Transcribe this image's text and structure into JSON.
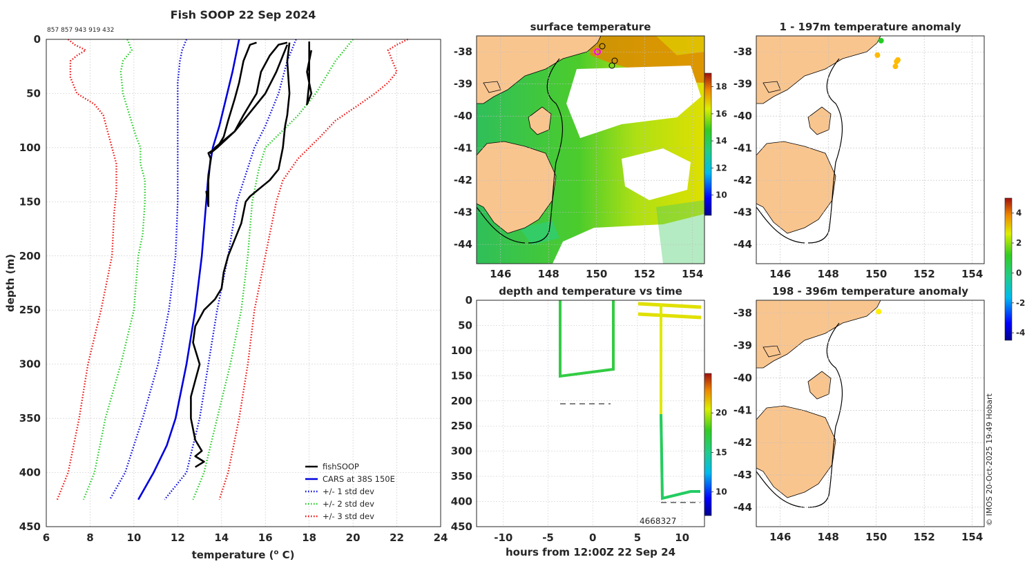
{
  "chart_data": [
    {
      "id": "profile",
      "type": "line",
      "title": "Fish SOOP 22 Sep 2024",
      "header_ids": "857 857 943 919 432",
      "xlabel": "temperature (",
      "xlabel_sup": "o",
      "xlabel_end": " C)",
      "ylabel": "depth (m)",
      "xlim": [
        6,
        24
      ],
      "ylim": [
        0,
        450
      ],
      "xticks": [
        "6",
        "8",
        "10",
        "12",
        "14",
        "16",
        "18",
        "20",
        "22",
        "24"
      ],
      "yticks": [
        "0",
        "50",
        "100",
        "150",
        "200",
        "250",
        "300",
        "350",
        "400",
        "450"
      ],
      "colors": {
        "black": "#000000",
        "blue": "#0000dd",
        "green": "#22cc22",
        "red": "#ee1111"
      },
      "legend": [
        {
          "label": "fishSOOP",
          "color": "#000000",
          "style": "solid"
        },
        {
          "label": "CARS at 38S 150E",
          "color": "#0000dd",
          "style": "solid"
        },
        {
          "label": "+/- 1 std dev",
          "color": "#0000dd",
          "style": "dotted"
        },
        {
          "label": "+/- 2 std dev",
          "color": "#22cc22",
          "style": "dotted"
        },
        {
          "label": "+/- 3 std dev",
          "color": "#ee1111",
          "style": "dotted"
        }
      ],
      "series": [
        {
          "name": "CARS mean",
          "color": "#0000dd",
          "style": "solid",
          "points": [
            [
              14.8,
              0
            ],
            [
              14.7,
              10
            ],
            [
              14.5,
              30
            ],
            [
              14.2,
              55
            ],
            [
              13.9,
              80
            ],
            [
              13.6,
              100
            ],
            [
              13.4,
              125
            ],
            [
              13.3,
              150
            ],
            [
              13.1,
              200
            ],
            [
              12.8,
              250
            ],
            [
              12.4,
              300
            ],
            [
              11.9,
              350
            ],
            [
              11.5,
              375
            ],
            [
              10.9,
              400
            ],
            [
              10.2,
              425
            ]
          ]
        },
        {
          "name": "-1 std",
          "color": "#0000dd",
          "style": "dotted",
          "points": [
            [
              12.4,
              0
            ],
            [
              12.2,
              10
            ],
            [
              12.1,
              20
            ],
            [
              12.0,
              40
            ],
            [
              12.0,
              100
            ],
            [
              12.0,
              150
            ],
            [
              11.9,
              200
            ],
            [
              11.6,
              250
            ],
            [
              11.1,
              300
            ],
            [
              10.4,
              350
            ],
            [
              9.6,
              400
            ],
            [
              8.9,
              425
            ]
          ]
        },
        {
          "name": "+1 std",
          "color": "#0000dd",
          "style": "dotted",
          "points": [
            [
              17.4,
              0
            ],
            [
              17.2,
              10
            ],
            [
              17.0,
              20
            ],
            [
              16.6,
              50
            ],
            [
              16.0,
              80
            ],
            [
              15.5,
              100
            ],
            [
              15.1,
              125
            ],
            [
              14.7,
              150
            ],
            [
              14.3,
              200
            ],
            [
              13.8,
              250
            ],
            [
              13.4,
              300
            ],
            [
              13.0,
              350
            ],
            [
              12.4,
              400
            ],
            [
              11.4,
              425
            ]
          ]
        },
        {
          "name": "-2 std",
          "color": "#22cc22",
          "style": "dotted",
          "points": [
            [
              9.7,
              0
            ],
            [
              9.9,
              10
            ],
            [
              9.5,
              20
            ],
            [
              9.4,
              30
            ],
            [
              9.5,
              50
            ],
            [
              9.8,
              70
            ],
            [
              10.1,
              90
            ],
            [
              10.3,
              100
            ],
            [
              10.3,
              115
            ],
            [
              10.5,
              130
            ],
            [
              10.5,
              150
            ],
            [
              10.4,
              180
            ],
            [
              10.2,
              200
            ],
            [
              10.0,
              250
            ],
            [
              9.4,
              300
            ],
            [
              8.7,
              350
            ],
            [
              8.2,
              400
            ],
            [
              7.7,
              425
            ]
          ]
        },
        {
          "name": "+2 std",
          "color": "#22cc22",
          "style": "dotted",
          "points": [
            [
              20.0,
              0
            ],
            [
              19.6,
              10
            ],
            [
              19.2,
              20
            ],
            [
              18.9,
              30
            ],
            [
              18.3,
              50
            ],
            [
              17.5,
              70
            ],
            [
              16.5,
              90
            ],
            [
              16.0,
              100
            ],
            [
              15.7,
              120
            ],
            [
              15.4,
              150
            ],
            [
              15.2,
              200
            ],
            [
              14.9,
              250
            ],
            [
              14.4,
              300
            ],
            [
              13.8,
              350
            ],
            [
              13.2,
              400
            ],
            [
              12.7,
              425
            ]
          ]
        },
        {
          "name": "-3 std",
          "color": "#ee1111",
          "style": "dotted",
          "points": [
            [
              7.0,
              0
            ],
            [
              7.3,
              5
            ],
            [
              7.8,
              10
            ],
            [
              7.4,
              15
            ],
            [
              7.1,
              20
            ],
            [
              7.1,
              35
            ],
            [
              7.4,
              50
            ],
            [
              8.2,
              60
            ],
            [
              8.6,
              70
            ],
            [
              8.8,
              85
            ],
            [
              9.0,
              100
            ],
            [
              9.2,
              115
            ],
            [
              9.2,
              140
            ],
            [
              9.1,
              160
            ],
            [
              9.0,
              200
            ],
            [
              8.5,
              250
            ],
            [
              7.9,
              300
            ],
            [
              7.5,
              350
            ],
            [
              7.0,
              400
            ],
            [
              6.5,
              425
            ]
          ]
        },
        {
          "name": "+3 std",
          "color": "#ee1111",
          "style": "dotted",
          "points": [
            [
              22.5,
              0
            ],
            [
              22.0,
              5
            ],
            [
              21.6,
              10
            ],
            [
              21.8,
              20
            ],
            [
              22.0,
              30
            ],
            [
              21.6,
              40
            ],
            [
              21.0,
              50
            ],
            [
              20.3,
              60
            ],
            [
              19.2,
              75
            ],
            [
              18.5,
              90
            ],
            [
              17.5,
              110
            ],
            [
              16.8,
              130
            ],
            [
              16.5,
              150
            ],
            [
              16.0,
              200
            ],
            [
              15.5,
              250
            ],
            [
              15.2,
              300
            ],
            [
              14.8,
              350
            ],
            [
              14.3,
              400
            ],
            [
              13.9,
              425
            ]
          ]
        },
        {
          "name": "fishSOOP cast 1",
          "color": "#000000",
          "style": "solid",
          "points": [
            [
              15.6,
              3
            ],
            [
              15.3,
              5
            ],
            [
              15.2,
              10
            ],
            [
              15.0,
              20
            ],
            [
              14.8,
              40
            ],
            [
              14.6,
              55
            ],
            [
              14.3,
              75
            ],
            [
              14.1,
              90
            ],
            [
              13.8,
              100
            ],
            [
              13.4,
              105
            ],
            [
              13.5,
              110
            ],
            [
              13.4,
              130
            ],
            [
              13.4,
              154
            ],
            [
              13.3,
              140
            ]
          ]
        },
        {
          "name": "fishSOOP cast 2",
          "color": "#000000",
          "style": "solid",
          "points": [
            [
              17.0,
              3
            ],
            [
              16.6,
              5
            ],
            [
              16.2,
              15
            ],
            [
              15.8,
              30
            ],
            [
              15.6,
              50
            ],
            [
              15.3,
              60
            ],
            [
              15.0,
              70
            ],
            [
              14.6,
              85
            ],
            [
              13.8,
              100
            ],
            [
              13.5,
              105
            ],
            [
              13.7,
              100
            ],
            [
              14.6,
              85
            ],
            [
              15.4,
              65
            ],
            [
              16.0,
              50
            ],
            [
              16.5,
              30
            ],
            [
              16.8,
              15
            ],
            [
              17.0,
              5
            ]
          ]
        },
        {
          "name": "fishSOOP cast 3",
          "color": "#000000",
          "style": "solid",
          "points": [
            [
              17.1,
              3
            ],
            [
              17.0,
              20
            ],
            [
              17.1,
              50
            ],
            [
              17.0,
              70
            ],
            [
              16.9,
              80
            ],
            [
              16.8,
              100
            ],
            [
              16.6,
              120
            ],
            [
              16.2,
              130
            ],
            [
              15.9,
              135
            ],
            [
              15.3,
              145
            ],
            [
              15.1,
              150
            ],
            [
              14.9,
              170
            ],
            [
              14.6,
              185
            ],
            [
              14.3,
              200
            ],
            [
              14.1,
              215
            ],
            [
              14.0,
              230
            ],
            [
              13.7,
              240
            ],
            [
              13.2,
              250
            ],
            [
              12.8,
              265
            ],
            [
              12.7,
              280
            ],
            [
              13.0,
              300
            ],
            [
              12.8,
              315
            ],
            [
              12.6,
              330
            ],
            [
              12.6,
              350
            ],
            [
              12.8,
              370
            ],
            [
              13.1,
              380
            ],
            [
              12.8,
              385
            ],
            [
              13.2,
              390
            ],
            [
              12.8,
              395
            ]
          ]
        },
        {
          "name": "fishSOOP cast 4",
          "color": "#000000",
          "style": "solid",
          "points": [
            [
              18.0,
              2
            ],
            [
              18.0,
              20
            ],
            [
              18.0,
              40
            ],
            [
              17.9,
              60
            ],
            [
              18.1,
              50
            ],
            [
              17.9,
              30
            ],
            [
              18.1,
              10
            ]
          ]
        }
      ]
    },
    {
      "id": "sst_map",
      "type": "heatmap",
      "title": "surface temperature",
      "xticks": [
        "146",
        "148",
        "150",
        "152",
        "154"
      ],
      "yticks": [
        "-38",
        "-39",
        "-40",
        "-41",
        "-42",
        "-43",
        "-44"
      ],
      "xlim": [
        145,
        154.5
      ],
      "ylim": [
        -44.6,
        -37.5
      ],
      "colorbar_ticks": [
        "18",
        "16",
        "14",
        "12",
        "10"
      ],
      "colorbar_range": [
        8.5,
        19
      ]
    },
    {
      "id": "time_plot",
      "type": "scatter",
      "title": "depth and temperature vs time",
      "xlabel": "hours from 12:00Z 22 Sep 24",
      "xlim": [
        -13,
        12.5
      ],
      "ylim": [
        0,
        450
      ],
      "xticks": [
        "-10",
        "-5",
        "0",
        "5",
        "10"
      ],
      "yticks": [
        "0",
        "50",
        "100",
        "150",
        "200",
        "250",
        "300",
        "350",
        "400",
        "450"
      ],
      "bottom_labels": "4668327",
      "colorbar_ticks": [
        "20",
        "15",
        "10"
      ],
      "colorbar_range": [
        7,
        25
      ]
    },
    {
      "id": "anom_shallow",
      "type": "scatter",
      "title": "1 - 197m temperature anomaly",
      "xticks": [
        "146",
        "148",
        "150",
        "152",
        "154"
      ],
      "yticks": [
        "-38",
        "-39",
        "-40",
        "-41",
        "-42",
        "-43",
        "-44"
      ],
      "points": [
        [
          150.2,
          -37.65,
          "#22cc22"
        ],
        [
          150.05,
          -38.1,
          "#ffbb00"
        ],
        [
          150.85,
          -38.3,
          "#ffbb00"
        ],
        [
          150.8,
          -38.45,
          "#ffbb00"
        ],
        [
          150.9,
          -38.25,
          "#ffbb00"
        ]
      ]
    },
    {
      "id": "anom_deep",
      "type": "scatter",
      "title": "198 - 396m temperature anomaly",
      "xticks": [
        "146",
        "148",
        "150",
        "152",
        "154"
      ],
      "yticks": [
        "-38",
        "-39",
        "-40",
        "-41",
        "-42",
        "-43",
        "-44"
      ],
      "points": [
        [
          150.1,
          -37.95,
          "#ffee00"
        ]
      ]
    }
  ],
  "anomaly_colorbar": {
    "ticks": [
      "4",
      "2",
      "0",
      "-2",
      "-4"
    ],
    "range": [
      -4.5,
      5
    ]
  },
  "credit": "© IMOS 20-Oct-2025 19:49 Hobart",
  "palette": {
    "land": "#f9c58f",
    "grid": "#cfcfcf",
    "text": "#262626"
  }
}
